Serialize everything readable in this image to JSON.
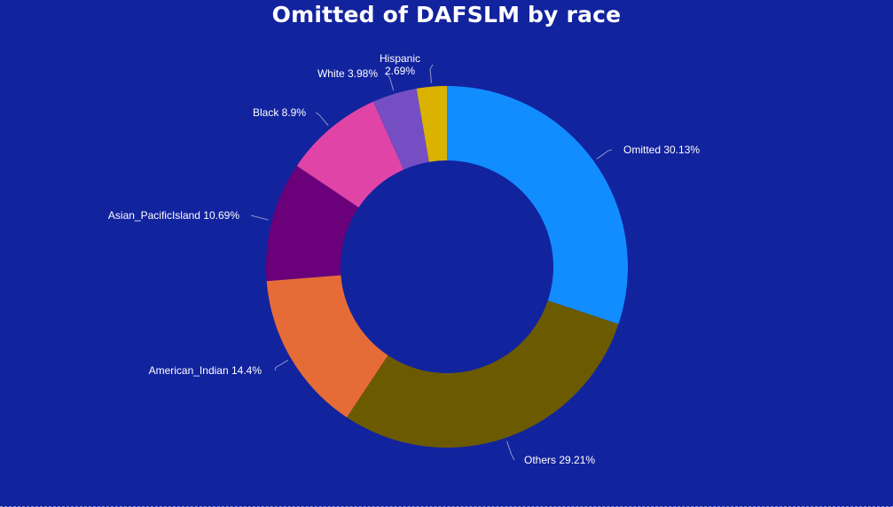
{
  "chart_data": {
    "type": "pie",
    "donut": true,
    "title": "Omitted of DAFSLM by race",
    "series": [
      {
        "name": "Omitted",
        "value": 30.13,
        "label": "Omitted 30.13%",
        "color": "#118dff"
      },
      {
        "name": "Others",
        "value": 29.21,
        "label": "Others 29.21%",
        "color": "#6b5a00"
      },
      {
        "name": "American_Indian",
        "value": 14.4,
        "label": "American_Indian 14.4%",
        "color": "#e66c37"
      },
      {
        "name": "Asian_PacificIsland",
        "value": 10.69,
        "label": "Asian_PacificIsland 10.69%",
        "color": "#6b007b"
      },
      {
        "name": "Black",
        "value": 8.9,
        "label": "Black 8.9%",
        "color": "#e044a7"
      },
      {
        "name": "White",
        "value": 3.98,
        "label": "White 3.98%",
        "color": "#744ec2"
      },
      {
        "name": "Hispanic",
        "value": 2.69,
        "label_lines": [
          "Hispanic",
          "2.69%"
        ],
        "color": "#d9b300"
      }
    ],
    "legend": "none",
    "data_labels": "outside, category and percent"
  },
  "background_color": "#12239e"
}
